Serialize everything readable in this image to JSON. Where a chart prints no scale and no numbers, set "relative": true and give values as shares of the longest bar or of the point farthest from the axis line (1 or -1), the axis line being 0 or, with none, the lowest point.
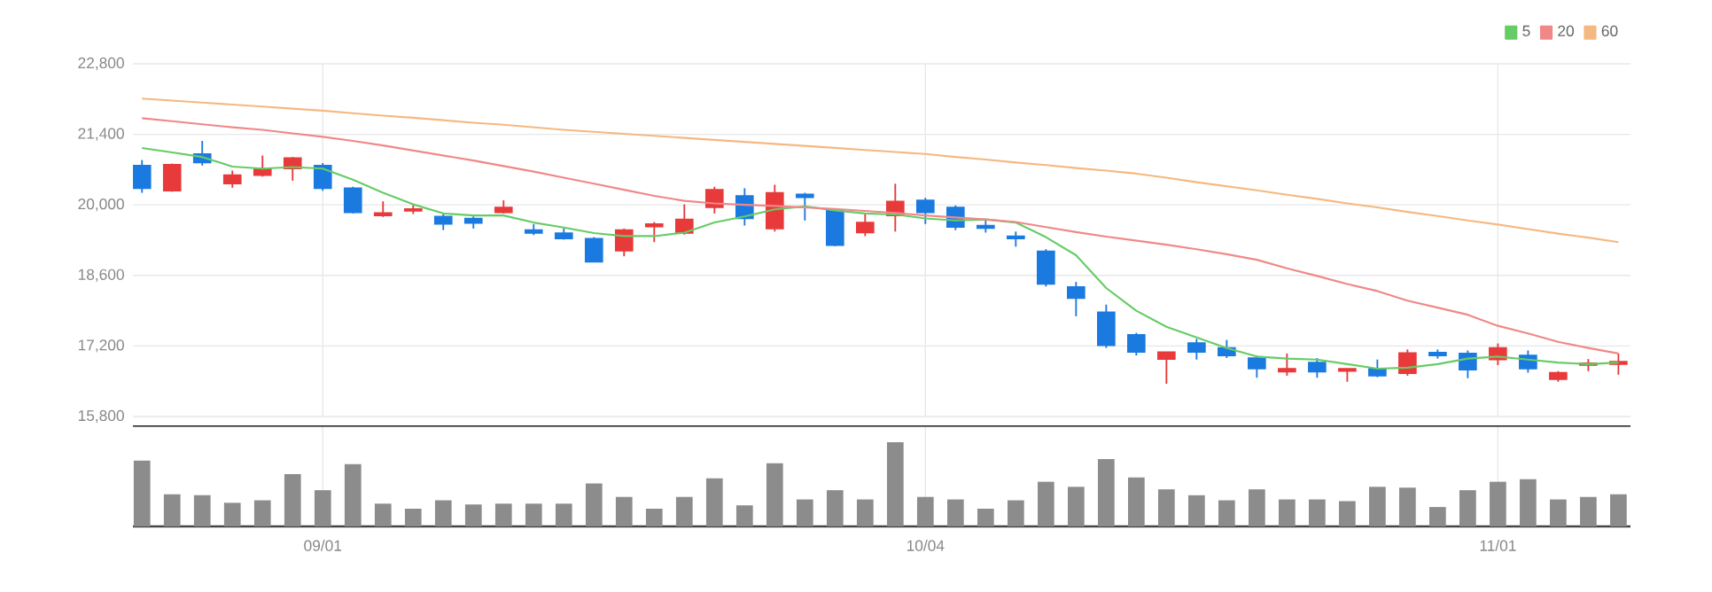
{
  "chart_data": [
    {
      "type": "candlestick",
      "categories": [
        null,
        null,
        null,
        null,
        null,
        null,
        null,
        null,
        null,
        null,
        null,
        null,
        null,
        null,
        null,
        null,
        null,
        null,
        null,
        null,
        null,
        null,
        null,
        null,
        null,
        null,
        null,
        null,
        null,
        null,
        null,
        null,
        null,
        null,
        null,
        null,
        null,
        null,
        null,
        null,
        null,
        null,
        null,
        null,
        null,
        null,
        null,
        null,
        null,
        null
      ],
      "ohlc": [
        [
          20780,
          20890,
          20240,
          20330
        ],
        [
          20280,
          20820,
          20260,
          20800
        ],
        [
          21010,
          21270,
          20780,
          20840
        ],
        [
          20420,
          20680,
          20340,
          20590
        ],
        [
          20590,
          20980,
          20560,
          20730
        ],
        [
          20720,
          20950,
          20480,
          20930
        ],
        [
          20780,
          20830,
          20280,
          20330
        ],
        [
          20330,
          20360,
          19830,
          19850
        ],
        [
          19790,
          20070,
          19760,
          19840
        ],
        [
          19880,
          20010,
          19820,
          19920
        ],
        [
          19770,
          19830,
          19500,
          19620
        ],
        [
          19730,
          19770,
          19530,
          19640
        ],
        [
          19850,
          20090,
          19830,
          19950
        ],
        [
          19500,
          19620,
          19400,
          19440
        ],
        [
          19440,
          19530,
          19310,
          19330
        ],
        [
          19330,
          19360,
          18860,
          18870
        ],
        [
          19090,
          19530,
          18980,
          19500
        ],
        [
          19570,
          19660,
          19260,
          19620
        ],
        [
          19440,
          20010,
          19410,
          19710
        ],
        [
          19950,
          20360,
          19830,
          20300
        ],
        [
          20180,
          20330,
          19590,
          19730
        ],
        [
          19530,
          20400,
          19470,
          20240
        ],
        [
          20210,
          20240,
          19690,
          20150
        ],
        [
          19890,
          19910,
          19180,
          19200
        ],
        [
          19450,
          19830,
          19380,
          19650
        ],
        [
          19790,
          20420,
          19470,
          20070
        ],
        [
          20090,
          20140,
          19620,
          19850
        ],
        [
          19950,
          19990,
          19500,
          19560
        ],
        [
          19590,
          19690,
          19450,
          19540
        ],
        [
          19380,
          19470,
          19170,
          19330
        ],
        [
          19080,
          19120,
          18380,
          18430
        ],
        [
          18370,
          18470,
          17790,
          18150
        ],
        [
          17870,
          18020,
          17160,
          17210
        ],
        [
          17420,
          17460,
          17010,
          17080
        ],
        [
          16940,
          17080,
          16450,
          17080
        ],
        [
          17260,
          17340,
          16930,
          17080
        ],
        [
          17160,
          17320,
          16960,
          17010
        ],
        [
          16960,
          17010,
          16570,
          16750
        ],
        [
          16690,
          17050,
          16610,
          16750
        ],
        [
          16870,
          16960,
          16570,
          16690
        ],
        [
          16700,
          16750,
          16490,
          16750
        ],
        [
          16750,
          16930,
          16580,
          16610
        ],
        [
          16660,
          17130,
          16610,
          17060
        ],
        [
          17070,
          17130,
          16950,
          17010
        ],
        [
          17050,
          17110,
          16560,
          16730
        ],
        [
          16930,
          17250,
          16820,
          17160
        ],
        [
          17010,
          17110,
          16670,
          16750
        ],
        [
          16540,
          16700,
          16490,
          16670
        ],
        [
          16820,
          16940,
          16700,
          16860
        ],
        [
          16840,
          17050,
          16630,
          16890
        ]
      ],
      "colors": [
        "#1a7ae0",
        "#e83a3a",
        "#1a7ae0",
        "#e83a3a",
        "#e83a3a",
        "#e83a3a",
        "#1a7ae0",
        "#1a7ae0",
        "#e83a3a",
        "#e83a3a",
        "#1a7ae0",
        "#1a7ae0",
        "#e83a3a",
        "#1a7ae0",
        "#1a7ae0",
        "#1a7ae0",
        "#e83a3a",
        "#e83a3a",
        "#e83a3a",
        "#e83a3a",
        "#1a7ae0",
        "#e83a3a",
        "#1a7ae0",
        "#1a7ae0",
        "#e83a3a",
        "#e83a3a",
        "#1a7ae0",
        "#1a7ae0",
        "#1a7ae0",
        "#1a7ae0",
        "#1a7ae0",
        "#1a7ae0",
        "#1a7ae0",
        "#1a7ae0",
        "#e83a3a",
        "#1a7ae0",
        "#1a7ae0",
        "#1a7ae0",
        "#e83a3a",
        "#1a7ae0",
        "#e83a3a",
        "#1a7ae0",
        "#e83a3a",
        "#1a7ae0",
        "#1a7ae0",
        "#e83a3a",
        "#1a7ae0",
        "#e83a3a",
        "#e83a3a",
        "#e83a3a"
      ],
      "series": [
        {
          "type": "line",
          "name": "5",
          "color": "#66cc66",
          "values": [
            21130,
            21040,
            20950,
            20760,
            20720,
            20750,
            20720,
            20500,
            20240,
            20010,
            19830,
            19790,
            19790,
            19650,
            19550,
            19440,
            19380,
            19380,
            19450,
            19650,
            19770,
            19910,
            19970,
            19890,
            19830,
            19810,
            19730,
            19690,
            19710,
            19650,
            19360,
            19000,
            18350,
            17900,
            17580,
            17370,
            17160,
            16990,
            16950,
            16930,
            16840,
            16750,
            16770,
            16840,
            16950,
            16990,
            16930,
            16870,
            16840,
            16870
          ]
        },
        {
          "type": "line",
          "name": "20",
          "color": "#f08888",
          "values": [
            21720,
            21660,
            21600,
            21540,
            21490,
            21420,
            21350,
            21270,
            21180,
            21080,
            20980,
            20880,
            20770,
            20660,
            20540,
            20420,
            20300,
            20180,
            20080,
            20030,
            20000,
            19980,
            19950,
            19920,
            19880,
            19840,
            19790,
            19750,
            19710,
            19660,
            19560,
            19460,
            19370,
            19290,
            19210,
            19120,
            19020,
            18910,
            18740,
            18590,
            18430,
            18290,
            18100,
            17960,
            17820,
            17600,
            17450,
            17280,
            17160,
            17050
          ]
        },
        {
          "type": "line",
          "name": "60",
          "color": "#f5b880",
          "values": [
            22110,
            22070,
            22030,
            21990,
            21950,
            21910,
            21870,
            21820,
            21770,
            21730,
            21680,
            21630,
            21590,
            21540,
            21490,
            21450,
            21410,
            21370,
            21330,
            21290,
            21250,
            21210,
            21170,
            21130,
            21090,
            21050,
            21010,
            20950,
            20900,
            20840,
            20790,
            20730,
            20680,
            20620,
            20540,
            20450,
            20370,
            20290,
            20200,
            20120,
            20030,
            19950,
            19860,
            19780,
            19690,
            19610,
            19520,
            19430,
            19350,
            19260
          ]
        }
      ],
      "ylim": [
        15800,
        22800
      ],
      "yticks": [
        {
          "value": 15800,
          "label": "15,800"
        },
        {
          "value": 17200,
          "label": "17,200"
        },
        {
          "value": 18600,
          "label": "18,600"
        },
        {
          "value": 20000,
          "label": "20,000"
        },
        {
          "value": 21400,
          "label": "21,400"
        },
        {
          "value": 22800,
          "label": "22,800"
        }
      ],
      "grid": true,
      "legend": "top right",
      "tick_labels": "y"
    },
    {
      "type": "bar",
      "categories": [
        null,
        null,
        null,
        null,
        null,
        null,
        "09/01",
        null,
        null,
        null,
        null,
        null,
        null,
        null,
        null,
        null,
        null,
        null,
        null,
        null,
        null,
        null,
        null,
        null,
        null,
        null,
        "10/04",
        null,
        null,
        null,
        null,
        null,
        null,
        null,
        null,
        null,
        null,
        null,
        null,
        null,
        null,
        null,
        null,
        null,
        null,
        "11/01",
        null,
        null,
        null,
        null
      ],
      "values": [
        0.78,
        0.38,
        0.37,
        0.28,
        0.31,
        0.62,
        0.43,
        0.74,
        0.27,
        0.21,
        0.31,
        0.26,
        0.27,
        0.27,
        0.27,
        0.51,
        0.35,
        0.21,
        0.35,
        0.57,
        0.25,
        0.75,
        0.32,
        0.43,
        0.32,
        1,
        0.35,
        0.32,
        0.21,
        0.31,
        0.53,
        0.47,
        0.8,
        0.58,
        0.44,
        0.37,
        0.31,
        0.44,
        0.32,
        0.32,
        0.3,
        0.47,
        0.46,
        0.23,
        0.43,
        0.53,
        0.56,
        0.32,
        0.35,
        0.38
      ],
      "color": "#8c8c8c",
      "relative": true,
      "grid": "x"
    }
  ]
}
